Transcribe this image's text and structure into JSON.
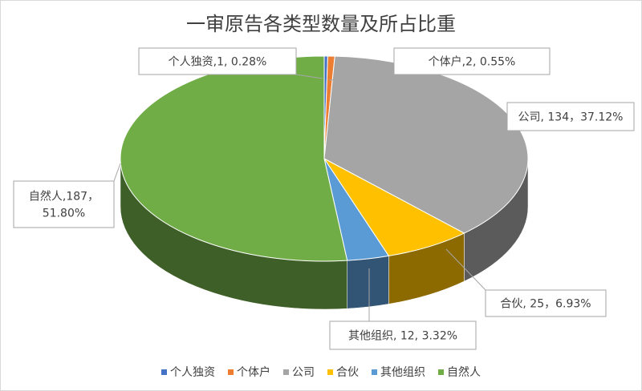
{
  "chart_data": {
    "type": "pie",
    "title": "一审原告各类型数量及所占比重",
    "categories": [
      "个人独资",
      "个体户",
      "公司",
      "合伙",
      "其他组织",
      "自然人"
    ],
    "values": [
      1,
      2,
      134,
      25,
      12,
      187
    ],
    "percents": [
      "0.28%",
      "0.55%",
      "37.12%",
      "6.93%",
      "3.32%",
      "51.80%"
    ],
    "colors": [
      "#4472c4",
      "#ed7d31",
      "#a5a5a5",
      "#ffc000",
      "#5b9bd5",
      "#70ad47"
    ],
    "data_labels": [
      [
        "个人独资,1, 0.28%"
      ],
      [
        "个体户,2, 0.55%"
      ],
      [
        "公司, 134，37.12%"
      ],
      [
        "合伙, 25，6.93%"
      ],
      [
        "其他组织, 12, 3.32%"
      ],
      [
        "自然人,187，",
        "51.80%"
      ]
    ],
    "legend_position": "bottom",
    "style": "3d-pie"
  }
}
